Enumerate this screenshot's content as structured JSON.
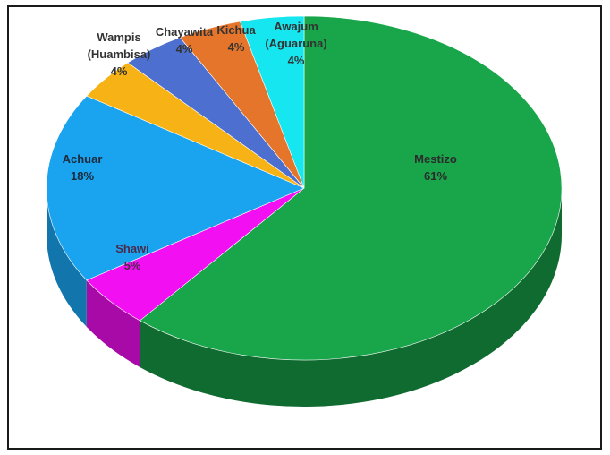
{
  "chart_data": {
    "type": "pie",
    "title": "",
    "slices": [
      {
        "name": "Mestizo",
        "value": 61,
        "label_lines": [
          "Mestizo",
          "61%"
        ],
        "color": "#19a64b",
        "side_color": "#0f6b30",
        "label_color": "#2b2b2b"
      },
      {
        "name": "Shawi",
        "value": 5,
        "label_lines": [
          "Shawi",
          "5%"
        ],
        "color": "#f20ff2",
        "side_color": "#a70aa7",
        "label_color": "#4a2a4a"
      },
      {
        "name": "Achuar",
        "value": 18,
        "label_lines": [
          "Achuar",
          "18%"
        ],
        "color": "#1aa3ef",
        "side_color": "#1276ad",
        "label_color": "#1b2b3b"
      },
      {
        "name": "Wampis (Huambisa)",
        "value": 4,
        "label_lines": [
          "Wampis",
          "(Huambisa)",
          "4%"
        ],
        "color": "#f7b316",
        "side_color": "#b27f0c",
        "label_color": "#333333"
      },
      {
        "name": "Chayawita",
        "value": 4,
        "label_lines": [
          "Chayawita",
          "4%"
        ],
        "color": "#4d6fd0",
        "side_color": "#344c91",
        "label_color": "#333333"
      },
      {
        "name": "Kichua",
        "value": 4,
        "label_lines": [
          "Kichua",
          "4%"
        ],
        "color": "#e5752b",
        "side_color": "#a5531e",
        "label_color": "#333333"
      },
      {
        "name": "Awajum (Aguaruna)",
        "value": 4,
        "label_lines": [
          "Awajum",
          "(Aguaruna)",
          "4%"
        ],
        "color": "#16e6f0",
        "side_color": "#0ea3aa",
        "label_color": "#333333"
      }
    ]
  }
}
